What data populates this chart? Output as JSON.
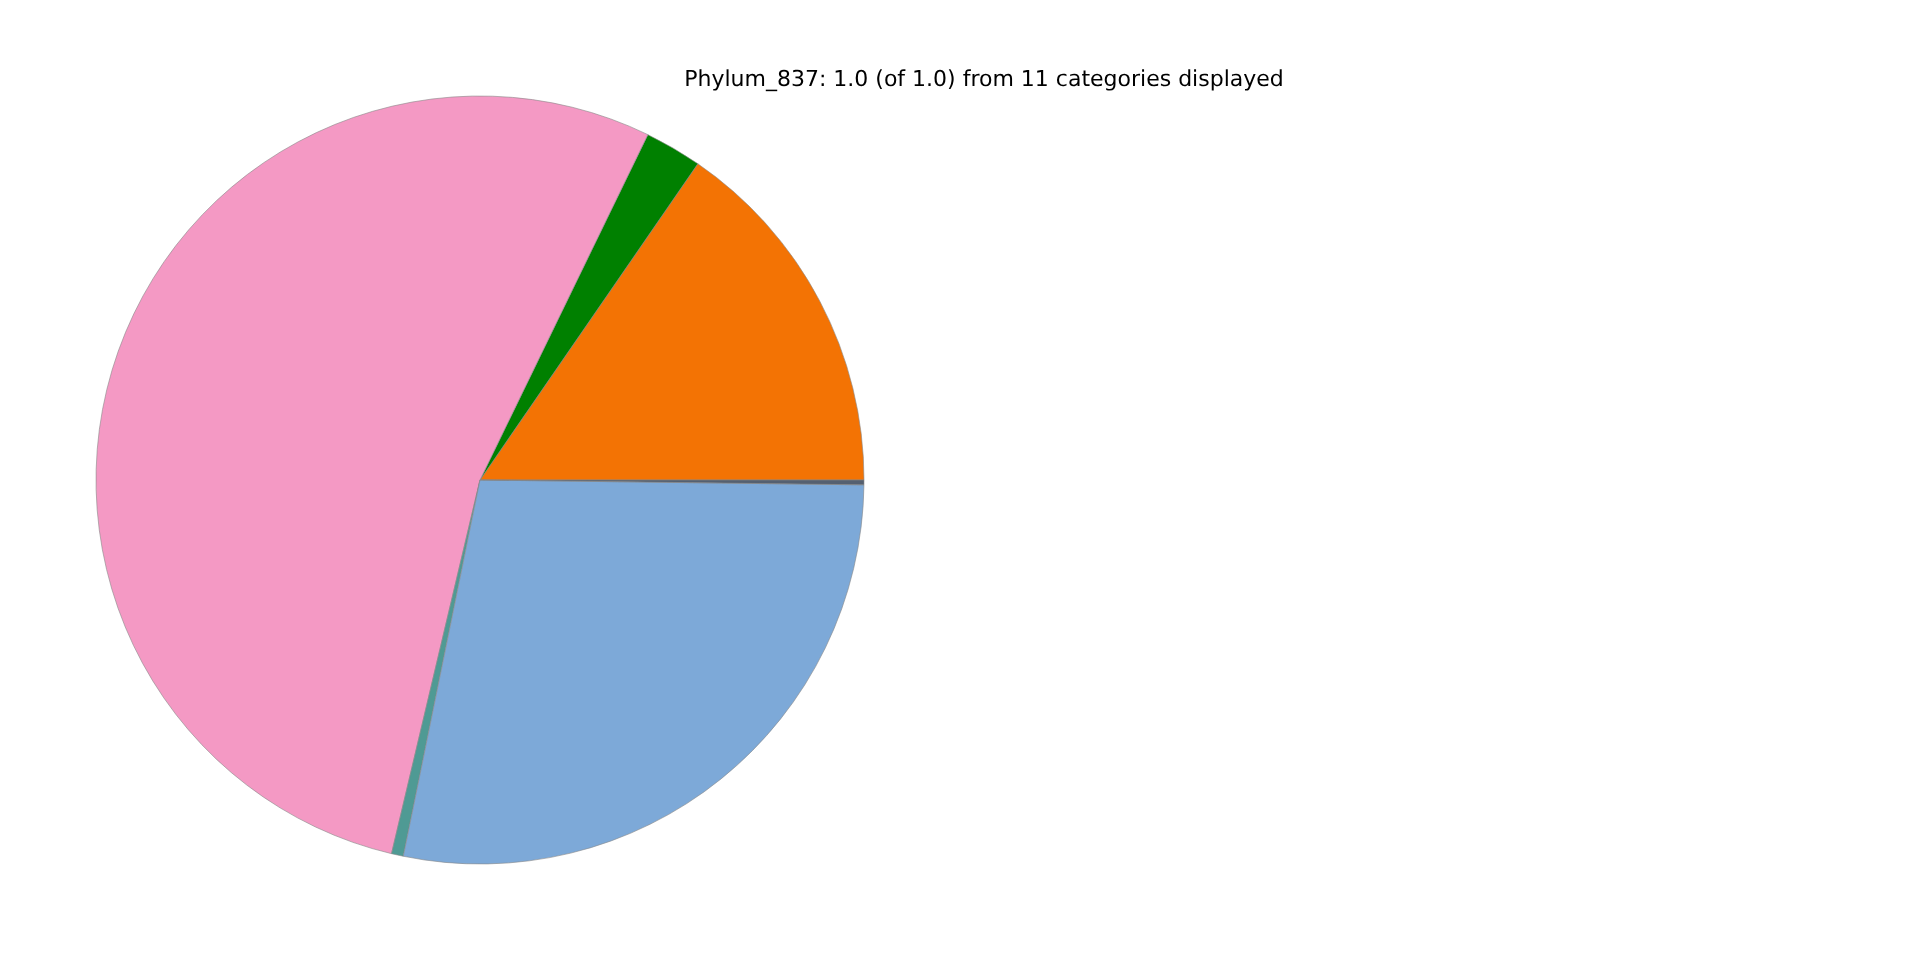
{
  "chart_data": {
    "type": "pie",
    "title": "Phylum_837: 1.0 (of 1.0) from 11 categories displayed",
    "categories": [
      null,
      null,
      null,
      null,
      null,
      null
    ],
    "values": [
      15.4,
      2.4,
      53.5,
      0.5,
      28.0,
      0.2
    ],
    "colors": [
      "#f37304",
      "#008000",
      "#f499c4",
      "#4f9a94",
      "#7da9d8",
      "#556070"
    ]
  }
}
